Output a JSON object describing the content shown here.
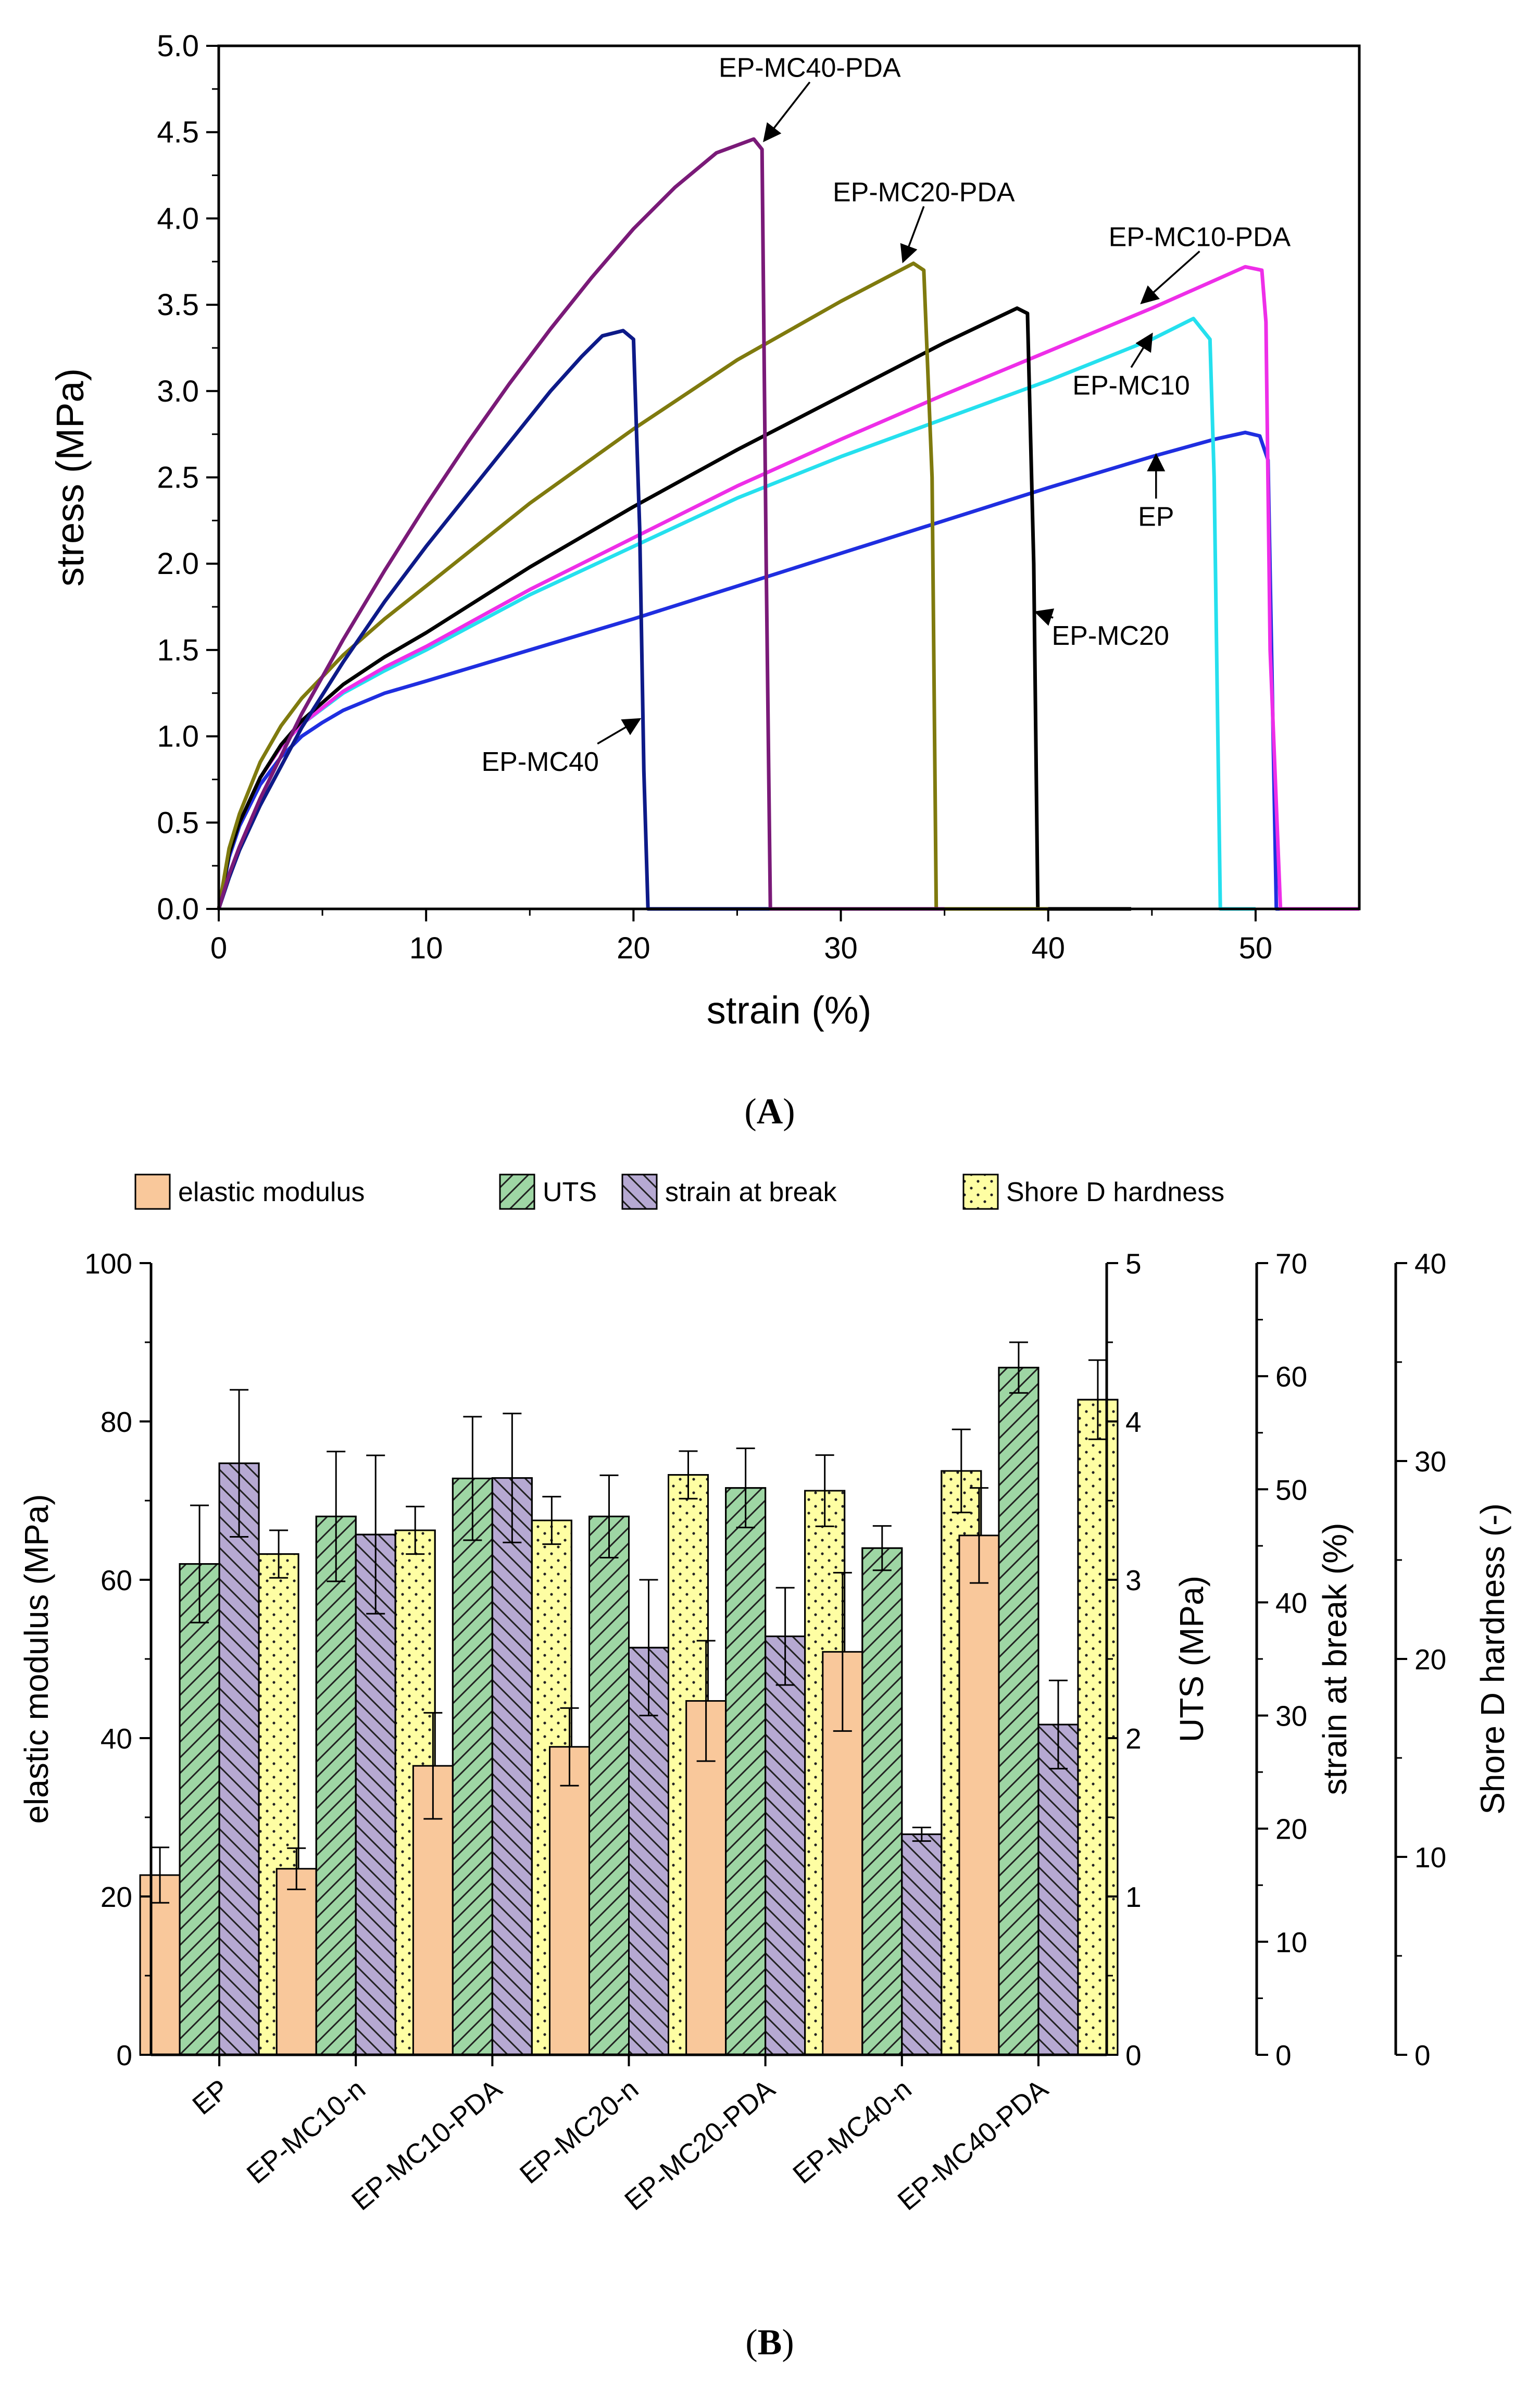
{
  "chart_data": [
    {
      "type": "line",
      "panel_label": "(A)",
      "panel_letter": "A",
      "xlabel": "strain (%)",
      "ylabel": "stress (MPa)",
      "xlim": [
        0,
        55
      ],
      "ylim": [
        0,
        5.0
      ],
      "xticks": [
        "0",
        "10",
        "20",
        "30",
        "40",
        "50"
      ],
      "yticks": [
        "0.0",
        "0.5",
        "1.0",
        "1.5",
        "2.0",
        "2.5",
        "3.0",
        "3.5",
        "4.0",
        "4.5",
        "5.0"
      ],
      "series": [
        {
          "name": "EP",
          "color": "#1f2ee0",
          "x": [
            0,
            0.5,
            1,
            2,
            3,
            4,
            5,
            6,
            7,
            8,
            10,
            15,
            20,
            25,
            30,
            35,
            40,
            45,
            48,
            49.5,
            50.2,
            50.6,
            51.0,
            55
          ],
          "y": [
            0,
            0.3,
            0.48,
            0.72,
            0.88,
            1.0,
            1.08,
            1.15,
            1.2,
            1.25,
            1.32,
            1.5,
            1.68,
            1.87,
            2.06,
            2.25,
            2.44,
            2.62,
            2.72,
            2.76,
            2.74,
            2.6,
            0,
            0
          ]
        },
        {
          "name": "EP-MC10",
          "color": "#25e0ee",
          "x": [
            0,
            0.5,
            1,
            2,
            3,
            4,
            6,
            8,
            10,
            15,
            20,
            25,
            30,
            35,
            40,
            45,
            47,
            47.8,
            48.0,
            48.3,
            50
          ],
          "y": [
            0,
            0.32,
            0.5,
            0.76,
            0.94,
            1.07,
            1.25,
            1.38,
            1.5,
            1.82,
            2.1,
            2.38,
            2.62,
            2.84,
            3.06,
            3.3,
            3.42,
            3.3,
            2.5,
            0,
            0
          ]
        },
        {
          "name": "EP-MC10-PDA",
          "color": "#ee2ee8",
          "x": [
            0,
            0.5,
            1,
            2,
            3,
            4,
            6,
            8,
            10,
            15,
            20,
            25,
            30,
            35,
            40,
            45,
            49.5,
            50.3,
            50.5,
            50.7,
            51.2,
            55
          ],
          "y": [
            0,
            0.32,
            0.5,
            0.76,
            0.94,
            1.07,
            1.26,
            1.4,
            1.52,
            1.85,
            2.15,
            2.45,
            2.72,
            2.98,
            3.23,
            3.48,
            3.72,
            3.7,
            3.4,
            1.5,
            0,
            0
          ]
        },
        {
          "name": "EP-MC20",
          "color": "#000000",
          "x": [
            0,
            0.5,
            1,
            2,
            3,
            4,
            6,
            8,
            10,
            15,
            20,
            25,
            30,
            35,
            38.5,
            39.0,
            39.3,
            39.5,
            44
          ],
          "y": [
            0,
            0.32,
            0.5,
            0.76,
            0.95,
            1.09,
            1.3,
            1.46,
            1.6,
            1.98,
            2.33,
            2.66,
            2.97,
            3.28,
            3.48,
            3.45,
            2.0,
            0,
            0
          ]
        },
        {
          "name": "EP-MC20-PDA",
          "color": "#7f7a0e",
          "x": [
            0,
            0.5,
            1,
            2,
            3,
            4,
            6,
            8,
            10,
            15,
            20,
            25,
            30,
            33.5,
            34.0,
            34.4,
            34.6,
            40
          ],
          "y": [
            0,
            0.35,
            0.55,
            0.85,
            1.06,
            1.22,
            1.47,
            1.68,
            1.87,
            2.35,
            2.78,
            3.18,
            3.52,
            3.74,
            3.7,
            2.5,
            0,
            0
          ]
        },
        {
          "name": "EP-MC40",
          "color": "#0d1a88",
          "x": [
            0,
            0.5,
            1,
            2,
            4,
            6,
            8,
            10,
            12,
            14,
            16,
            17.5,
            18.5,
            19.5,
            20.0,
            20.3,
            20.5,
            20.7,
            30
          ],
          "y": [
            0,
            0.18,
            0.34,
            0.6,
            1.05,
            1.43,
            1.78,
            2.1,
            2.4,
            2.7,
            3.0,
            3.2,
            3.32,
            3.35,
            3.3,
            2.2,
            0.8,
            0,
            0
          ]
        },
        {
          "name": "EP-MC40-PDA",
          "color": "#7a1a78",
          "x": [
            0,
            0.5,
            1,
            2,
            4,
            6,
            8,
            10,
            12,
            14,
            16,
            18,
            20,
            22,
            24,
            25.8,
            26.2,
            26.4,
            26.6,
            35
          ],
          "y": [
            0,
            0.2,
            0.36,
            0.64,
            1.13,
            1.56,
            1.96,
            2.34,
            2.7,
            3.04,
            3.36,
            3.66,
            3.94,
            4.18,
            4.38,
            4.46,
            4.4,
            2.0,
            0,
            0
          ]
        }
      ],
      "annotations": [
        {
          "text": "EP-MC40-PDA",
          "tip_x": 26.3,
          "tip_y": 4.45,
          "text_x": 28.5,
          "text_y": 4.82
        },
        {
          "text": "EP-MC20-PDA",
          "tip_x": 33.0,
          "tip_y": 3.75,
          "text_x": 34.0,
          "text_y": 4.1
        },
        {
          "text": "EP-MC10-PDA",
          "tip_x": 44.5,
          "tip_y": 3.51,
          "text_x": 47.3,
          "text_y": 3.84
        },
        {
          "text": "EP-MC10",
          "tip_x": 45.0,
          "tip_y": 3.33,
          "text_x": 44.0,
          "text_y": 2.98
        },
        {
          "text": "EP",
          "tip_x": 45.2,
          "tip_y": 2.63,
          "text_x": 45.2,
          "text_y": 2.22
        },
        {
          "text": "EP-MC20",
          "tip_x": 39.4,
          "tip_y": 1.72,
          "text_x": 43.0,
          "text_y": 1.53
        },
        {
          "text": "EP-MC40",
          "tip_x": 20.3,
          "tip_y": 1.1,
          "text_x": 15.5,
          "text_y": 0.8
        }
      ]
    },
    {
      "type": "bar",
      "panel_label": "(B)",
      "panel_letter": "B",
      "categories": [
        "EP",
        "EP-MC10-n",
        "EP-MC10-PDA",
        "EP-MC20-n",
        "EP-MC20-PDA",
        "EP-MC40-n",
        "EP-MC40-PDA"
      ],
      "legend_position": "top",
      "axes": [
        {
          "label": "elastic modulus (MPa)",
          "range": [
            0,
            100
          ],
          "ticks": [
            "0",
            "20",
            "40",
            "60",
            "80",
            "100"
          ],
          "side": "left"
        },
        {
          "label": "UTS (MPa)",
          "range": [
            0,
            5
          ],
          "ticks": [
            "0",
            "1",
            "2",
            "3",
            "4",
            "5"
          ],
          "side": "right"
        },
        {
          "label": "strain at break (%)",
          "range": [
            0,
            70
          ],
          "ticks": [
            "0",
            "10",
            "20",
            "30",
            "40",
            "50",
            "60",
            "70"
          ],
          "side": "right"
        },
        {
          "label": "Shore D hardness (-)",
          "range": [
            0,
            40
          ],
          "ticks": [
            "0",
            "10",
            "20",
            "30",
            "40"
          ],
          "side": "right"
        }
      ],
      "series": [
        {
          "name": "elastic modulus",
          "axis": 0,
          "fill": "#f9c89b",
          "pattern": "solid",
          "values": [
            22.7,
            23.5,
            36.5,
            38.9,
            44.7,
            50.9,
            65.6
          ],
          "errors": [
            3.5,
            2.6,
            6.7,
            4.9,
            7.6,
            10.0,
            6.0
          ]
        },
        {
          "name": "UTS",
          "axis": 1,
          "fill": "#9ed6a4",
          "pattern": "diag-right",
          "values": [
            3.1,
            3.4,
            3.64,
            3.4,
            3.58,
            3.2,
            4.34
          ],
          "errors": [
            0.37,
            0.41,
            0.39,
            0.26,
            0.25,
            0.14,
            0.16
          ]
        },
        {
          "name": "strain at break",
          "axis": 2,
          "fill": "#b6a9d2",
          "pattern": "diag-left",
          "values": [
            52.3,
            46.0,
            51.0,
            36.0,
            37.0,
            19.5,
            29.2
          ],
          "errors": [
            6.5,
            7.0,
            5.7,
            6.0,
            4.3,
            0.6,
            3.9
          ]
        },
        {
          "name": "Shore D hardness",
          "axis": 3,
          "fill": "#fefea3",
          "pattern": "dots",
          "values": [
            25.3,
            26.5,
            27.0,
            29.3,
            28.5,
            29.5,
            33.1
          ],
          "errors": [
            1.2,
            1.2,
            1.2,
            1.2,
            1.8,
            2.1,
            2.0
          ]
        }
      ]
    }
  ]
}
